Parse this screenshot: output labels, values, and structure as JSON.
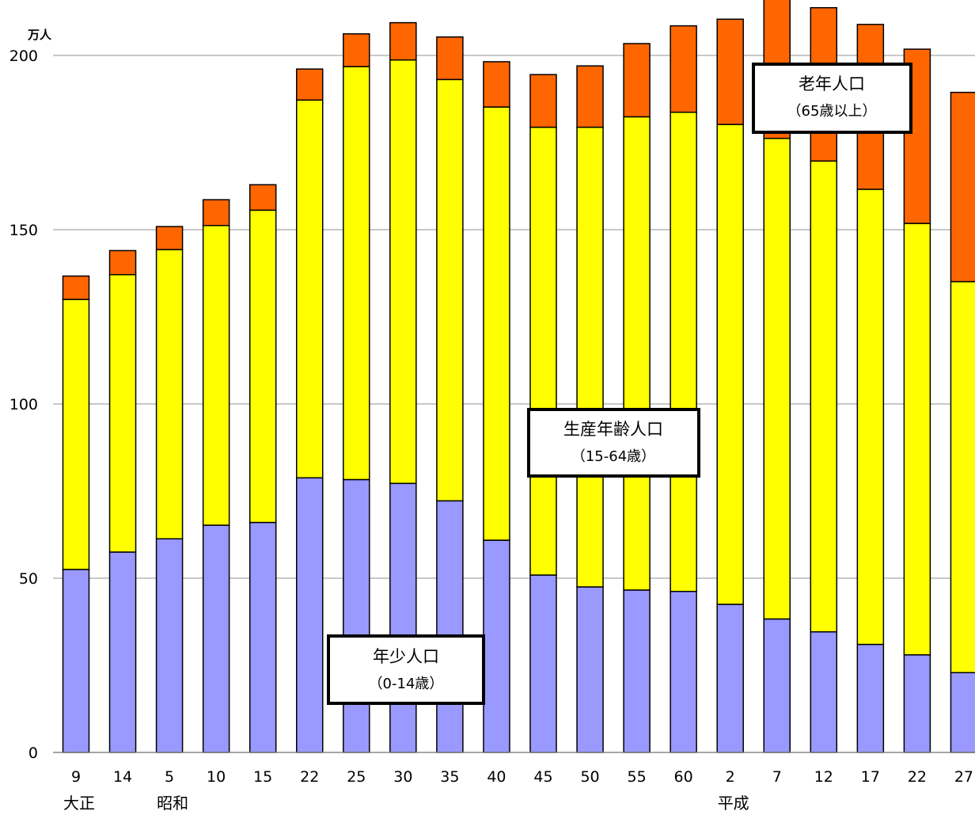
{
  "chart_data": {
    "type": "bar",
    "stacked": true,
    "unit_label": "万人",
    "ylim": [
      0,
      200
    ],
    "yticks": [
      0,
      50,
      100,
      150,
      200
    ],
    "grid": true,
    "categories": [
      "9",
      "14",
      "5",
      "10",
      "15",
      "22",
      "25",
      "30",
      "35",
      "40",
      "45",
      "50",
      "55",
      "60",
      "2",
      "7",
      "12",
      "17",
      "22",
      "27"
    ],
    "eras": [
      {
        "label": "大正",
        "category_index": 0
      },
      {
        "label": "昭和",
        "category_index": 2
      },
      {
        "label": "平成",
        "category_index": 14
      }
    ],
    "series": [
      {
        "name": "年少人口（0-14歳）",
        "color": "#9999FF",
        "values": [
          52.5,
          57.5,
          61.3,
          65.2,
          66,
          78.8,
          78.3,
          77.2,
          72.2,
          60.9,
          50.9,
          47.5,
          46.6,
          46.2,
          42.5,
          38.3,
          34.6,
          31,
          28,
          22.9
        ]
      },
      {
        "name": "生産年齢人口（15-64歳）",
        "color": "#FFFF00",
        "values": [
          77.5,
          79.6,
          83,
          86,
          89.6,
          108.4,
          118.5,
          121.5,
          120.9,
          124.3,
          128.5,
          131.9,
          135.8,
          137.5,
          137.7,
          137.9,
          135.1,
          130.6,
          123.8,
          112.2
        ]
      },
      {
        "name": "老年人口（65歳以上）",
        "color": "#FF6600",
        "values": [
          6.7,
          6.9,
          6.6,
          7.4,
          7.3,
          8.9,
          9.4,
          10.7,
          12.2,
          13,
          15.1,
          17.6,
          21,
          24.8,
          30.2,
          41.3,
          44,
          47.3,
          50,
          54.3
        ]
      }
    ],
    "annotations": [
      {
        "title": "老年人口",
        "subtitle": "（65歳以上）"
      },
      {
        "title": "生産年齢人口",
        "subtitle": "（15-64歳）"
      },
      {
        "title": "年少人口",
        "subtitle": "（0-14歳）"
      }
    ]
  }
}
